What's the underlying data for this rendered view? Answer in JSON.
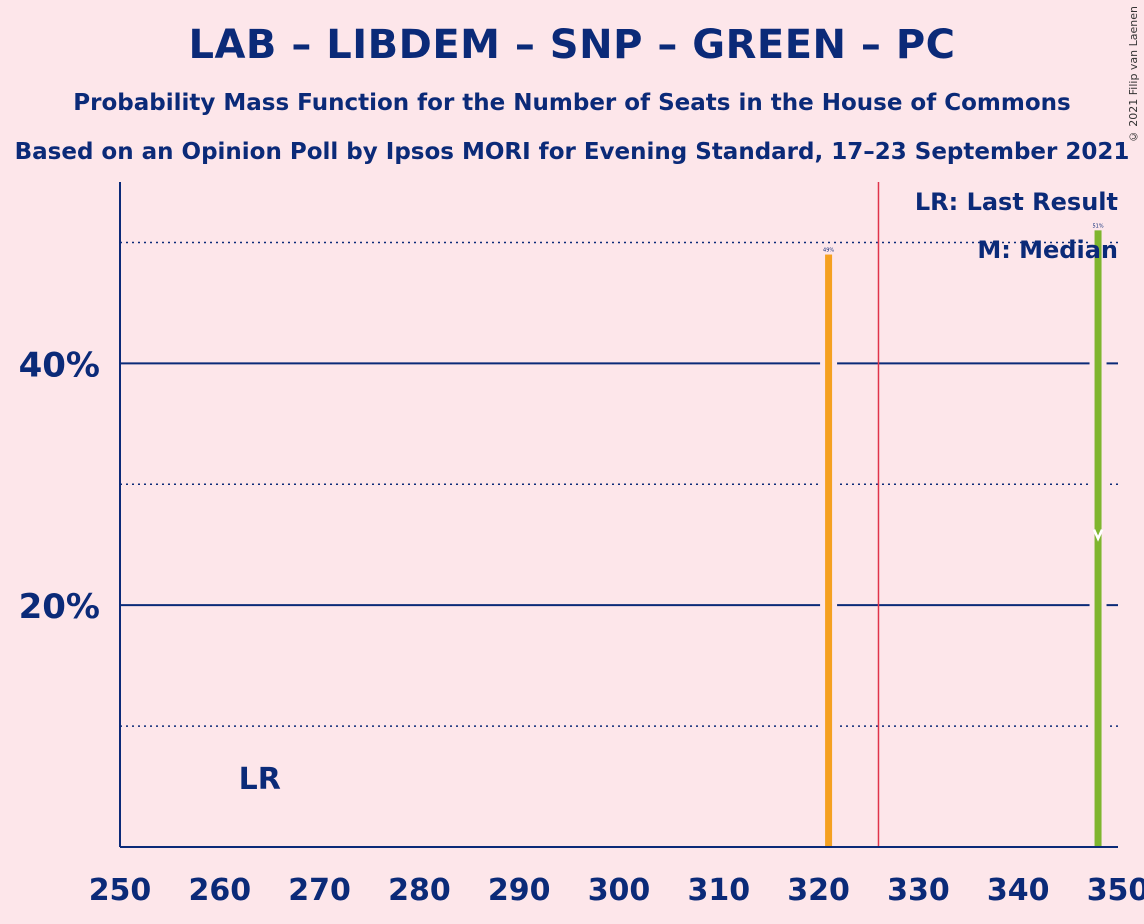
{
  "title": "LAB – LIBDEM – SNP – GREEN – PC",
  "subtitle": "Probability Mass Function for the Number of Seats in the House of Commons",
  "subtitle2": "Based on an Opinion Poll by Ipsos MORI for Evening Standard, 17–23 September 2021",
  "copyright": "© 2021 Filip van Laenen",
  "legend": {
    "last_result": "LR: Last Result",
    "median": "M: Median"
  },
  "markers": {
    "last_result_label": "LR",
    "median_label": "M"
  },
  "colors": {
    "background": "#fde6ea",
    "axis": "#0b2a78",
    "orange_bar": "#f5a020",
    "green_bar": "#7fb52e",
    "majority_line": "#e0334a"
  },
  "chart_data": {
    "type": "bar",
    "xlim": [
      250,
      350
    ],
    "ylim": [
      0,
      55
    ],
    "x_ticks": [
      250,
      260,
      270,
      280,
      290,
      300,
      310,
      320,
      330,
      340,
      350
    ],
    "y_ticks": [
      {
        "value": 20,
        "label": "20%"
      },
      {
        "value": 40,
        "label": "40%"
      }
    ],
    "y_minor_gridlines": [
      10,
      30,
      50
    ],
    "majority_line": 326,
    "last_result": 262,
    "median": 348,
    "bars": [
      {
        "x": 321,
        "value": 49,
        "label": "49%",
        "color": "orange"
      },
      {
        "x": 348,
        "value": 51,
        "label": "51%",
        "color": "green"
      }
    ]
  }
}
